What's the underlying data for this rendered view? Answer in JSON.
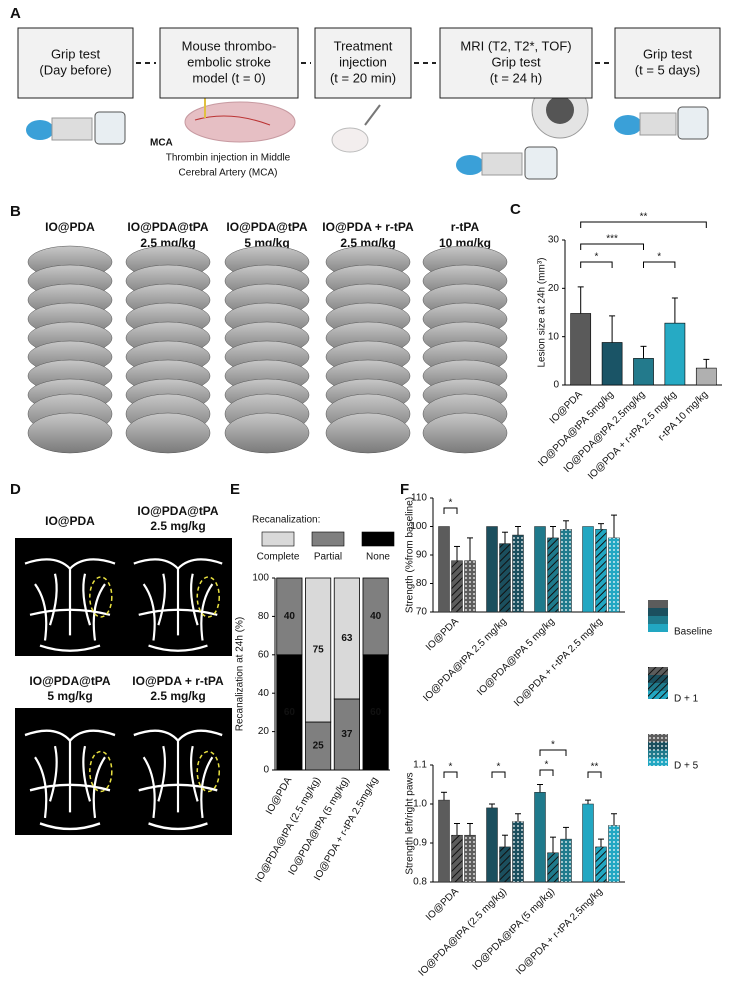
{
  "panel_a": {
    "label": "A",
    "steps": [
      {
        "lines": [
          "Grip test",
          "(Day before)"
        ]
      },
      {
        "lines": [
          "Mouse thrombo-",
          "embolic stroke",
          "model (t = 0)"
        ]
      },
      {
        "lines": [
          "Treatment",
          "injection",
          "(t = 20 min)"
        ]
      },
      {
        "lines": [
          "MRI (T2, T2*, TOF)",
          "Grip test",
          "(t = 24 h)"
        ]
      },
      {
        "lines": [
          "Grip test",
          "(t = 5 days)"
        ]
      }
    ],
    "mca": "MCA",
    "injection_note": [
      "Thrombin injection in Middle",
      "Cerebral Artery (MCA)"
    ]
  },
  "panel_b": {
    "label": "B",
    "groups": [
      {
        "lines": [
          "IO@PDA"
        ],
        "color": "#111111"
      },
      {
        "lines": [
          "IO@PDA@tPA",
          "2.5 mg/kg"
        ],
        "color": "#1b5a6b"
      },
      {
        "lines": [
          "IO@PDA@tPA",
          "5 mg/kg"
        ],
        "color": "#1f8096"
      },
      {
        "lines": [
          "IO@PDA + r-tPA",
          "2.5 mg/kg"
        ],
        "color": "#22a0b8"
      },
      {
        "lines": [
          "r-tPA",
          "10 mg/kg"
        ],
        "color": "#999999"
      }
    ]
  },
  "panel_d": {
    "label": "D",
    "images": [
      {
        "lines": [
          "IO@PDA"
        ],
        "color": "#777777"
      },
      {
        "lines": [
          "IO@PDA@tPA",
          "2.5 mg/kg"
        ],
        "color": "#1b5a6b"
      },
      {
        "lines": [
          "IO@PDA@tPA",
          "5 mg/kg"
        ],
        "color": "#1f8096"
      },
      {
        "lines": [
          "IO@PDA + r-tPA",
          "2.5 mg/kg"
        ],
        "color": "#22a0b8"
      }
    ]
  },
  "chart_data": [
    {
      "type": "bar",
      "panel": "C",
      "ylabel": "Lesion size at 24h (mm³)",
      "categories": [
        "IO@PDA",
        "IO@PDA@tPA 5mg/kg",
        "IO@PDA@tPA 2.5mg/kg",
        "IO@PDA + r-tPA 2.5 mg/kg",
        "r-tPA 10 mg/kg"
      ],
      "values": [
        14.8,
        8.8,
        5.5,
        12.8,
        3.5
      ],
      "errors": [
        5.5,
        5.5,
        2.5,
        5.2,
        1.8
      ],
      "colors": [
        "#5a5a5a",
        "#1a5466",
        "#237a8c",
        "#26aac4",
        "#b0b0b0"
      ],
      "ylim": [
        0,
        30
      ],
      "yticks": [
        0,
        10,
        20,
        30
      ],
      "annotations": [
        "*",
        "***",
        "*",
        "**"
      ]
    },
    {
      "type": "stacked_bar",
      "panel": "E",
      "legend_title": "Recanalization:",
      "ylabel": "Recanalization at 24h (%)",
      "categories": [
        "IO@PDA",
        "IO@PDA@tPA (2.5 mg/kg)",
        "IO@PDA@tPA (5 mg/kg)",
        "IO@PDA + r-tPA 2.5mg/kg"
      ],
      "series": [
        {
          "name": "Complete",
          "color": "#d9d9d9",
          "label_color": "#000000",
          "values": [
            0,
            75,
            63,
            0
          ]
        },
        {
          "name": "Partial",
          "color": "#7f7f7f",
          "label_color": "#ffffff",
          "values": [
            40,
            25,
            37,
            40
          ]
        },
        {
          "name": "None",
          "color": "#000000",
          "label_color": "#ffffff",
          "values": [
            60,
            0,
            0,
            60
          ]
        }
      ],
      "ylim": [
        0,
        100
      ],
      "yticks": [
        0,
        20,
        40,
        60,
        80,
        100
      ]
    },
    {
      "type": "grouped_bar",
      "panel": "F",
      "ylabel": "Strength (%from baseline)",
      "legend_position": "right",
      "categories": [
        "IO@PDA",
        "IO@PDA@tPA 2.5 mg/kg",
        "IO@PDA@tPA 5 mg/kg",
        "IO@PDA + r-tPA 2.5 mg/kg"
      ],
      "group_colors": [
        "#5c5c5c",
        "#1b4f5e",
        "#1f7a8c",
        "#22a7c2"
      ],
      "series": [
        {
          "name": "Baseline",
          "pattern": "solid",
          "values": [
            100,
            100,
            100,
            100
          ]
        },
        {
          "name": "D + 1",
          "pattern": "hatch",
          "values": [
            88,
            94,
            96,
            99
          ],
          "errors": [
            5,
            4,
            4,
            2
          ]
        },
        {
          "name": "D + 5",
          "pattern": "dots",
          "values": [
            88,
            97,
            99,
            96
          ],
          "errors": [
            8,
            3,
            3,
            8
          ]
        }
      ],
      "ylim": [
        70,
        110
      ],
      "yticks": [
        70,
        80,
        90,
        100,
        110
      ],
      "annotations": [
        "*"
      ]
    },
    {
      "type": "grouped_bar",
      "ylabel": "Strength left/right paws",
      "categories": [
        "IO@PDA",
        "IO@PDA@tPA (2.5 mg/kg)",
        "IO@PDA@tPA (5 mg/kg)",
        "IO@PDA + r-tPA 2.5mg/kg"
      ],
      "group_colors": [
        "#5c5c5c",
        "#1b4f5e",
        "#1f7a8c",
        "#22a7c2"
      ],
      "series": [
        {
          "name": "Baseline",
          "pattern": "solid",
          "values": [
            1.01,
            0.99,
            1.03,
            1.0
          ],
          "errors": [
            0.02,
            0.01,
            0.02,
            0.01
          ]
        },
        {
          "name": "D + 1",
          "pattern": "hatch",
          "values": [
            0.92,
            0.89,
            0.875,
            0.89
          ],
          "errors": [
            0.03,
            0.03,
            0.04,
            0.02
          ]
        },
        {
          "name": "D + 5",
          "pattern": "dots",
          "values": [
            0.92,
            0.955,
            0.91,
            0.945
          ],
          "errors": [
            0.03,
            0.02,
            0.03,
            0.03
          ]
        }
      ],
      "ylim": [
        0.8,
        1.1
      ],
      "yticks": [
        0.8,
        0.9,
        {
          "value": 1,
          "label": "1.0"
        },
        1.1
      ],
      "annotations": [
        "*",
        "*",
        "*",
        "*",
        "**"
      ]
    }
  ]
}
